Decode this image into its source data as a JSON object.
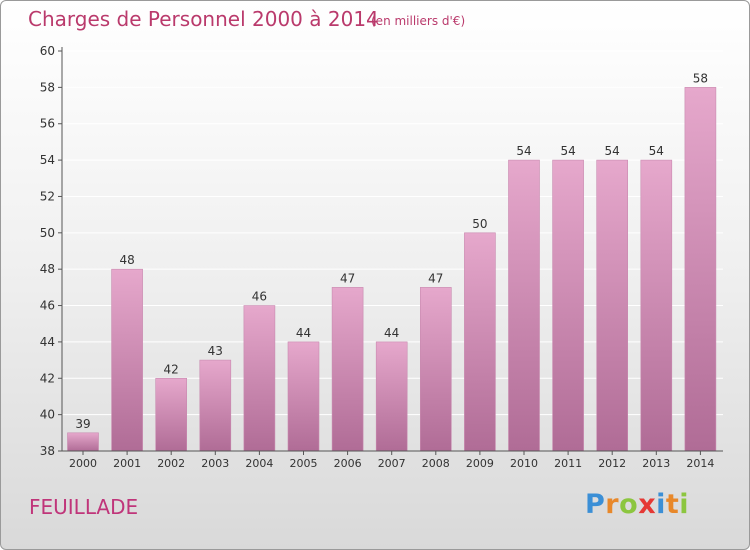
{
  "header": {
    "title": "Charges de Personnel 2000 à 2014",
    "subtitle": "(en milliers d'€)"
  },
  "footer": {
    "commune": "FEUILLADE",
    "brand": "Proxiti",
    "brand_letters": [
      {
        "ch": "P",
        "color": "#3b8fd6"
      },
      {
        "ch": "r",
        "color": "#e8882a"
      },
      {
        "ch": "o",
        "color": "#8cc63f"
      },
      {
        "ch": "x",
        "color": "#e53935"
      },
      {
        "ch": "i",
        "color": "#3b8fd6"
      },
      {
        "ch": "t",
        "color": "#e8882a"
      },
      {
        "ch": "i",
        "color": "#8cc63f"
      }
    ]
  },
  "colors": {
    "bar_top": "#e6a8cc",
    "bar_bottom": "#b06c96",
    "bar_outline": "#c98ab0",
    "axis": "#555555",
    "grid": "#ffffff",
    "text": "#333333"
  },
  "chart_data": {
    "type": "bar",
    "categories": [
      "2000",
      "2001",
      "2002",
      "2003",
      "2004",
      "2005",
      "2006",
      "2007",
      "2008",
      "2009",
      "2010",
      "2011",
      "2012",
      "2013",
      "2014"
    ],
    "values": [
      39,
      48,
      42,
      43,
      46,
      44,
      47,
      44,
      47,
      50,
      54,
      54,
      54,
      54,
      58
    ],
    "ylim": [
      38,
      60
    ],
    "yticks": [
      38,
      40,
      42,
      44,
      46,
      48,
      50,
      52,
      54,
      56,
      58,
      60
    ],
    "grid": true,
    "xlabel": "",
    "ylabel": ""
  }
}
